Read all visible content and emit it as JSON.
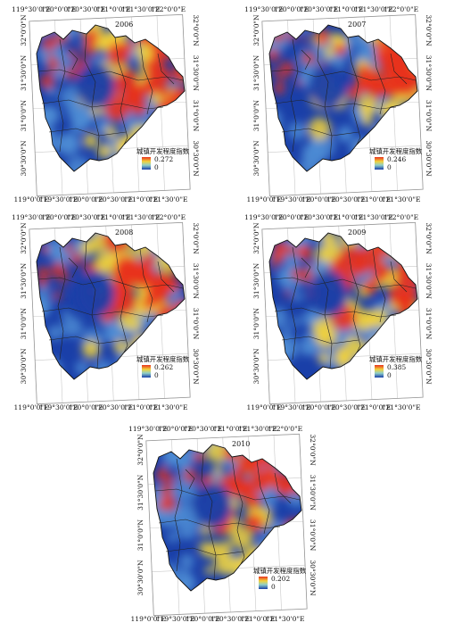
{
  "legend_title": "城镇开发程度指数",
  "legend_min": "0",
  "colors": {
    "low": "#1a3fa8",
    "mid_low": "#4f8fd6",
    "mid": "#8fd0c8",
    "mid_high": "#f2d23a",
    "high": "#e8321e"
  },
  "maps": [
    {
      "year": "2006",
      "max": "0.272",
      "top_ticks": [
        "119°30'0\"E",
        "120°0'0\"E",
        "120°30'0\"E",
        "121°0'0\"E",
        "121°30'0\"E",
        "122°0'0\"E"
      ],
      "bottom_ticks": [
        "119°0'0\"E",
        "119°30'0\"E",
        "120°0'0\"E",
        "120°30'0\"E",
        "121°0'0\"E",
        "121°30'0\"E"
      ],
      "left_ticks": [
        "32°0'0\"N",
        "31°30'0\"N",
        "31°0'0\"N",
        "30°30'0\"N"
      ],
      "right_ticks": [
        "32°0'0\"N",
        "31°30'0\"N",
        "31°0'0\"N",
        "30°30'0\"N"
      ]
    },
    {
      "year": "2007",
      "max": "0.246",
      "top_ticks": [
        "119°30'0\"E",
        "120°0'0\"E",
        "120°30'0\"E",
        "121°0'0\"E",
        "121°30'0\"E",
        "122°0'0\"E"
      ],
      "bottom_ticks": [
        "119°0'0\"E",
        "119°30'0\"E",
        "120°0'0\"E",
        "120°30'0\"E",
        "121°0'0\"E",
        "121°30'0\"E"
      ],
      "left_ticks": [
        "32°0'0\"N",
        "31°30'0\"N",
        "31°0'0\"N",
        "30°30'0\"N"
      ],
      "right_ticks": [
        "32°0'0\"N",
        "31°30'0\"N",
        "31°0'0\"N",
        "30°30'0\"N"
      ]
    },
    {
      "year": "2008",
      "max": "0.262",
      "top_ticks": [
        "119°30'0\"E",
        "120°0'0\"E",
        "120°30'0\"E",
        "121°0'0\"E",
        "121°30'0\"E",
        "122°0'0\"E"
      ],
      "bottom_ticks": [
        "119°0'0\"E",
        "119°30'0\"E",
        "120°0'0\"E",
        "120°30'0\"E",
        "121°0'0\"E",
        "121°30'0\"E"
      ],
      "left_ticks": [
        "32°0'0\"N",
        "31°30'0\"N",
        "31°0'0\"N",
        "30°30'0\"N"
      ],
      "right_ticks": [
        "32°0'0\"N",
        "31°30'0\"N",
        "31°0'0\"N",
        "30°30'0\"N"
      ]
    },
    {
      "year": "2009",
      "max": "0.385",
      "top_ticks": [
        "119°30'0\"E",
        "120°0'0\"E",
        "120°30'0\"E",
        "121°0'0\"E",
        "121°30'0\"E",
        "122°0'0\"E"
      ],
      "bottom_ticks": [
        "119°0'0\"E",
        "119°30'0\"E",
        "120°0'0\"E",
        "120°30'0\"E",
        "121°0'0\"E",
        "121°30'0\"E"
      ],
      "left_ticks": [
        "32°0'0\"N",
        "31°30'0\"N",
        "31°0'0\"N",
        "30°30'0\"N"
      ],
      "right_ticks": [
        "32°0'0\"N",
        "31°30'0\"N",
        "31°0'0\"N",
        "30°30'0\"N"
      ]
    },
    {
      "year": "2010",
      "max": "0.202",
      "top_ticks": [
        "119°30'0\"E",
        "120°0'0\"E",
        "120°30'0\"E",
        "121°0'0\"E",
        "121°30'0\"E",
        "122°0'0\"E"
      ],
      "bottom_ticks": [
        "119°0'0\"E",
        "119°30'0\"E",
        "120°0'0\"E",
        "120°30'0\"E",
        "121°0'0\"E",
        "121°30'0\"E"
      ],
      "left_ticks": [
        "32°0'0\"N",
        "31°30'0\"N",
        "31°0'0\"N",
        "30°30'0\"N"
      ],
      "right_ticks": [
        "32°0'0\"N",
        "31°30'0\"N",
        "31°0'0\"N",
        "30°30'0\"N"
      ]
    }
  ]
}
